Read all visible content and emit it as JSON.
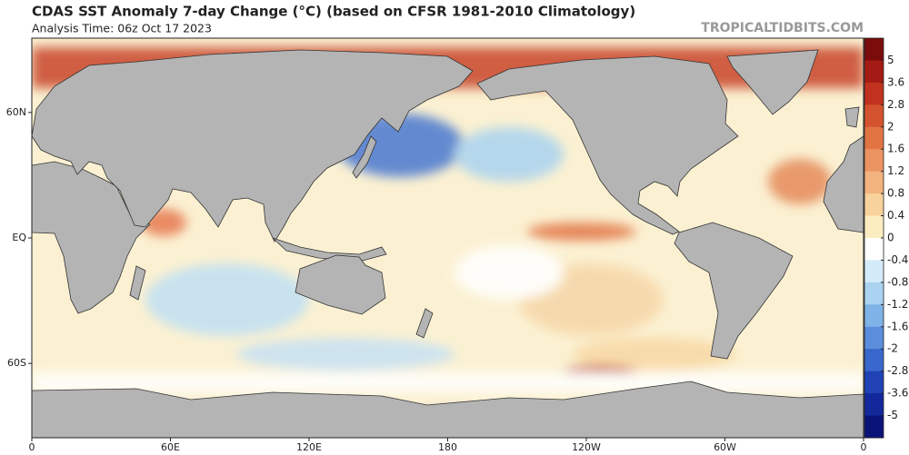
{
  "header": {
    "title": "CDAS SST Anomaly 7-day Change (°C) (based on CFSR 1981-2010 Climatology)",
    "subtitle": "Analysis Time: 06z Oct 17 2023",
    "watermark": "TROPICALTIDBITS.COM"
  },
  "map": {
    "projection": "mercator",
    "lonlim": [
      0,
      360
    ],
    "latlim": [
      -76,
      76
    ],
    "lon_ticks": [
      {
        "value": 0,
        "label": "0"
      },
      {
        "value": 60,
        "label": "60E"
      },
      {
        "value": 120,
        "label": "120E"
      },
      {
        "value": 180,
        "label": "180"
      },
      {
        "value": 240,
        "label": "120W"
      },
      {
        "value": 300,
        "label": "60W"
      },
      {
        "value": 360,
        "label": "0"
      }
    ],
    "lat_ticks": [
      {
        "value": 60,
        "label": "60N"
      },
      {
        "value": 0,
        "label": "EQ"
      },
      {
        "value": -60,
        "label": "60S"
      }
    ]
  },
  "colorbar": {
    "levels": [
      5,
      3.6,
      2.8,
      2,
      1.6,
      1.2,
      0.8,
      0.4,
      0,
      -0.4,
      -0.8,
      -1.2,
      -1.6,
      -2,
      -2.8,
      -3.6,
      -5
    ],
    "colors": [
      "#7a0c0c",
      "#a31b14",
      "#c0321f",
      "#d4532f",
      "#e27444",
      "#ec9461",
      "#f3b37f",
      "#f8d29c",
      "#fcedc0",
      "#ffffff",
      "#d3ebf8",
      "#a9d3f0",
      "#7fb2e6",
      "#5a8edc",
      "#3a67cc",
      "#2142b5",
      "#13289a",
      "#0a1478"
    ]
  }
}
